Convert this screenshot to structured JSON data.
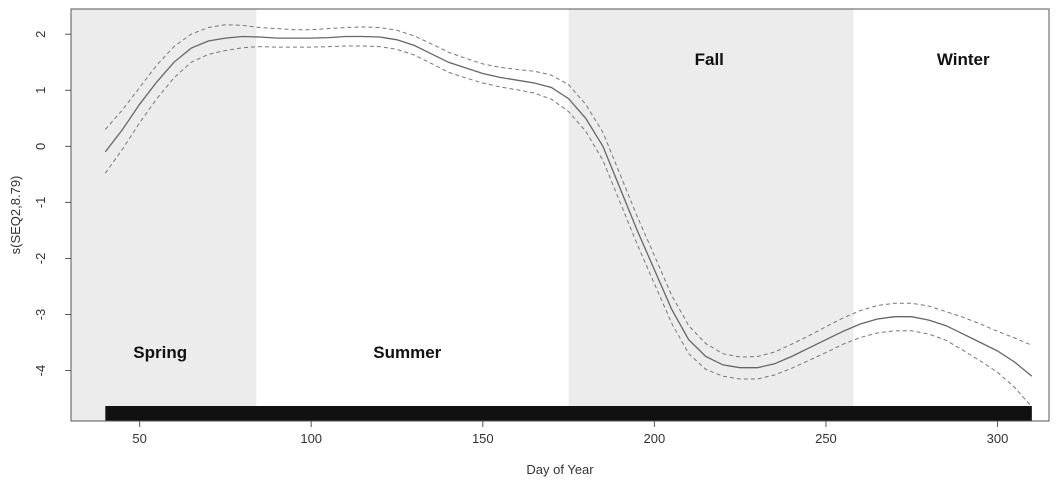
{
  "chart_data": {
    "type": "line",
    "title": "",
    "xlabel": "Day of Year",
    "ylabel": "s(SEQ2,8.79)",
    "xlim": [
      30,
      315
    ],
    "ylim": [
      -4.9,
      2.45
    ],
    "xticks": [
      50,
      100,
      150,
      200,
      250,
      300
    ],
    "yticks": [
      -4,
      -3,
      -2,
      -1,
      0,
      1,
      2
    ],
    "xtick_labels": [
      "50",
      "100",
      "150",
      "200",
      "250",
      "300"
    ],
    "ytick_labels": [
      "-4",
      "-3",
      "-2",
      "-1",
      "0",
      "1",
      "2"
    ],
    "grid": false,
    "seasons": [
      {
        "label": "Spring",
        "start": 30,
        "end": 84,
        "shaded": true,
        "label_x": 56,
        "label_y": -3.78
      },
      {
        "label": "Summer",
        "start": 84,
        "end": 175,
        "shaded": false,
        "label_x": 128,
        "label_y": -3.78
      },
      {
        "label": "Fall",
        "start": 175,
        "end": 258,
        "shaded": true,
        "label_x": 216,
        "label_y": 1.45
      },
      {
        "label": "Winter",
        "start": 258,
        "end": 315,
        "shaded": false,
        "label_x": 290,
        "label_y": 1.45
      }
    ],
    "rug": {
      "start": 40,
      "end": 310
    },
    "x": [
      40,
      45,
      50,
      55,
      60,
      65,
      70,
      75,
      80,
      85,
      90,
      95,
      100,
      105,
      110,
      115,
      120,
      125,
      130,
      135,
      140,
      145,
      150,
      155,
      160,
      165,
      170,
      175,
      180,
      185,
      190,
      195,
      200,
      205,
      210,
      215,
      220,
      225,
      230,
      235,
      240,
      245,
      250,
      255,
      260,
      265,
      270,
      275,
      280,
      285,
      290,
      295,
      300,
      305,
      310
    ],
    "series": [
      {
        "role": "fit",
        "values": [
          -0.1,
          0.3,
          0.75,
          1.15,
          1.5,
          1.75,
          1.88,
          1.93,
          1.96,
          1.95,
          1.93,
          1.93,
          1.93,
          1.94,
          1.96,
          1.96,
          1.95,
          1.9,
          1.8,
          1.65,
          1.5,
          1.4,
          1.3,
          1.23,
          1.18,
          1.13,
          1.05,
          0.85,
          0.5,
          0.0,
          -0.75,
          -1.5,
          -2.2,
          -2.9,
          -3.45,
          -3.75,
          -3.9,
          -3.95,
          -3.95,
          -3.88,
          -3.75,
          -3.6,
          -3.45,
          -3.3,
          -3.17,
          -3.08,
          -3.04,
          -3.04,
          -3.1,
          -3.2,
          -3.35,
          -3.5,
          -3.65,
          -3.85,
          -4.1
        ]
      },
      {
        "role": "upper",
        "values": [
          0.3,
          0.65,
          1.05,
          1.45,
          1.78,
          2.0,
          2.12,
          2.17,
          2.16,
          2.12,
          2.1,
          2.08,
          2.08,
          2.1,
          2.12,
          2.13,
          2.12,
          2.07,
          1.97,
          1.83,
          1.68,
          1.57,
          1.47,
          1.41,
          1.37,
          1.34,
          1.27,
          1.1,
          0.75,
          0.25,
          -0.5,
          -1.25,
          -1.95,
          -2.65,
          -3.2,
          -3.52,
          -3.7,
          -3.76,
          -3.75,
          -3.67,
          -3.53,
          -3.38,
          -3.22,
          -3.06,
          -2.93,
          -2.84,
          -2.8,
          -2.8,
          -2.85,
          -2.95,
          -3.05,
          -3.17,
          -3.3,
          -3.42,
          -3.55
        ]
      },
      {
        "role": "lower",
        "values": [
          -0.48,
          -0.05,
          0.42,
          0.85,
          1.22,
          1.5,
          1.64,
          1.71,
          1.76,
          1.78,
          1.77,
          1.77,
          1.77,
          1.78,
          1.79,
          1.79,
          1.78,
          1.73,
          1.63,
          1.48,
          1.32,
          1.22,
          1.13,
          1.06,
          1.01,
          0.95,
          0.84,
          0.62,
          0.27,
          -0.25,
          -1.0,
          -1.75,
          -2.45,
          -3.15,
          -3.7,
          -3.98,
          -4.1,
          -4.15,
          -4.15,
          -4.08,
          -3.96,
          -3.82,
          -3.68,
          -3.53,
          -3.41,
          -3.33,
          -3.29,
          -3.29,
          -3.35,
          -3.46,
          -3.64,
          -3.83,
          -4.03,
          -4.3,
          -4.65
        ]
      }
    ]
  }
}
